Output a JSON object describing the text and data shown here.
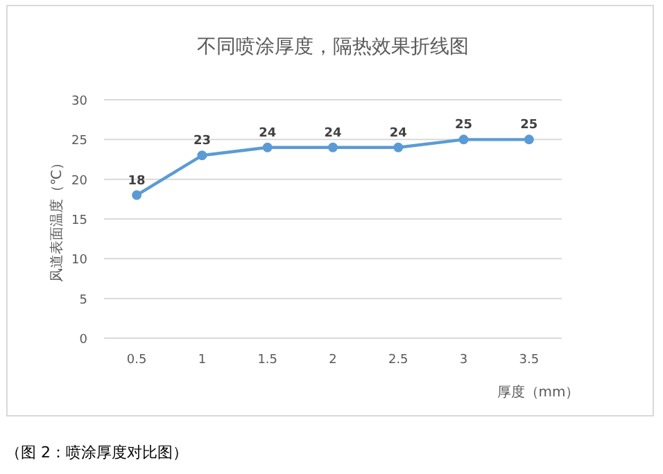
{
  "chart_data": {
    "type": "line",
    "title": "不同喷涂厚度，隔热效果折线图",
    "xlabel": "厚度（mm）",
    "ylabel": "风道表面温度（℃）",
    "categories": [
      "0.5",
      "1",
      "1.5",
      "2",
      "2.5",
      "3",
      "3.5"
    ],
    "series": [
      {
        "color": "#5b9bd5",
        "values": [
          18,
          23,
          24,
          24,
          24,
          25,
          25
        ]
      }
    ],
    "ylim": [
      0,
      30
    ],
    "yticks": [
      0,
      5,
      10,
      15,
      20,
      25,
      30
    ],
    "grid": "y",
    "marker": "circle",
    "data_labels": true,
    "annotations": [
      "（图 2：喷涂厚度对比图）"
    ]
  }
}
